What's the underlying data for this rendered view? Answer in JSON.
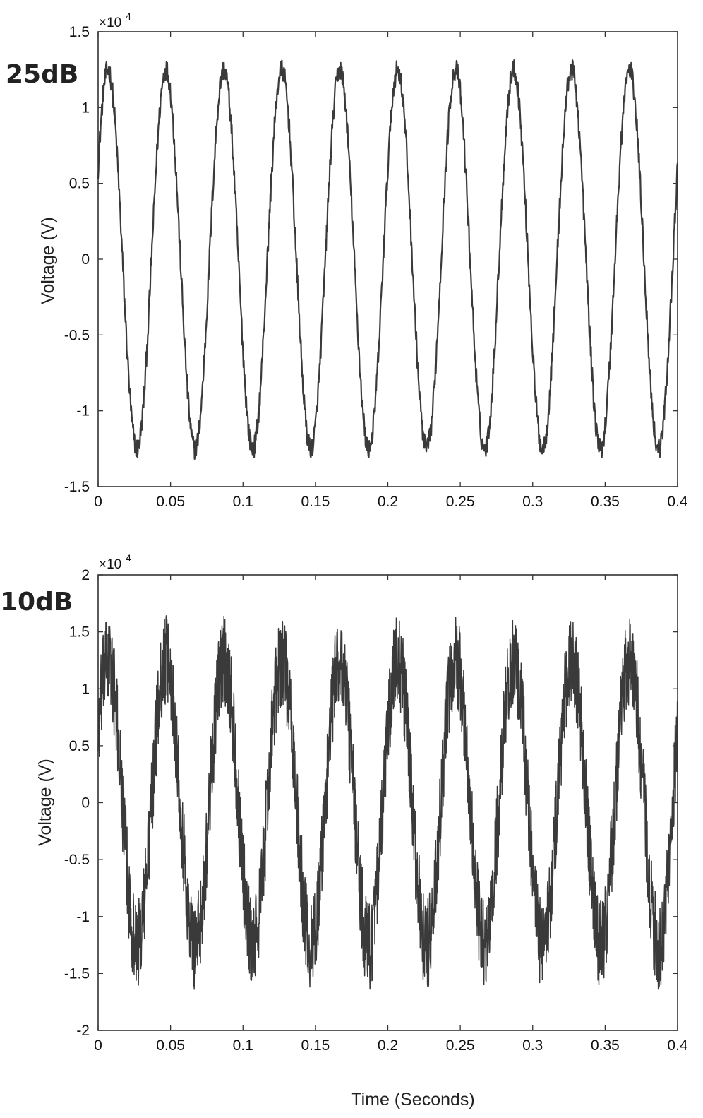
{
  "chart_data": [
    {
      "type": "line",
      "panel_label": "25dB",
      "ylabel": "Voltage (V)",
      "xlim": [
        0,
        0.4
      ],
      "ylim": [
        -1.5,
        1.5
      ],
      "y_multiplier": "×10",
      "y_multiplier_exponent": "4",
      "x_ticks": [
        "0",
        "0.05",
        "0.1",
        "0.15",
        "0.2",
        "0.25",
        "0.3",
        "0.35",
        "0.4"
      ],
      "y_ticks": [
        "1.5",
        "1",
        "0.5",
        "0",
        "-0.5",
        "-1",
        "-1.5"
      ],
      "grid": false,
      "signal": {
        "waveform": "sine",
        "frequency_hz": 25,
        "amplitude": 1.25,
        "phase_rad": 0.5,
        "noise_peak": 0.07,
        "samples": 1400
      },
      "color": "#3a3a3a"
    },
    {
      "type": "line",
      "panel_label": "10dB",
      "xlabel": "Time (Seconds)",
      "ylabel": "Voltage (V)",
      "xlim": [
        0,
        0.4
      ],
      "ylim": [
        -2,
        2
      ],
      "y_multiplier": "×10",
      "y_multiplier_exponent": "4",
      "x_ticks": [
        "0",
        "0.05",
        "0.1",
        "0.15",
        "0.2",
        "0.25",
        "0.3",
        "0.35",
        "0.4"
      ],
      "y_ticks": [
        "2",
        "1.5",
        "1",
        "0.5",
        "0",
        "-0.5",
        "-1",
        "-1.5",
        "-2"
      ],
      "grid": false,
      "signal": {
        "waveform": "sine",
        "frequency_hz": 25,
        "amplitude": 1.25,
        "phase_rad": 0.5,
        "noise_peak": 0.4,
        "samples": 2400
      },
      "color": "#3a3a3a"
    }
  ]
}
